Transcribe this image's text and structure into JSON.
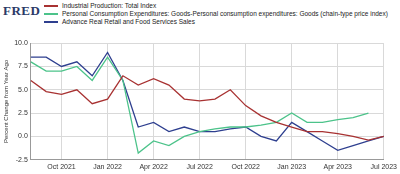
{
  "chart_data": {
    "type": "line",
    "logo": "FRED",
    "y_label": "Percent Change from Year Ago",
    "categories": [
      null,
      null,
      "Oct 2021",
      null,
      null,
      "Jan 2022",
      null,
      null,
      "Apr 2022",
      null,
      null,
      "Jul 2022",
      null,
      null,
      "Oct 2022",
      null,
      null,
      "Jan 2023",
      null,
      null,
      "Apr 2023",
      null,
      null,
      "Jul 2023"
    ],
    "series": [
      {
        "name": "Industrial Production: Total Index",
        "color": "#a83232",
        "values": [
          6.0,
          4.8,
          4.5,
          5.0,
          3.5,
          4.0,
          6.5,
          5.5,
          6.2,
          5.5,
          4.0,
          3.8,
          4.0,
          5.0,
          3.3,
          2.2,
          1.5,
          1.0,
          0.5,
          0.5,
          0.3,
          0.0,
          -0.4,
          0.0
        ]
      },
      {
        "name": "Personal Consumption Expenditures: Goods-Personal consumption expenditures: Goods (chain-type price index)",
        "color": "#4cc38a",
        "values": [
          8.0,
          7.0,
          7.0,
          7.5,
          6.0,
          8.5,
          6.0,
          -1.8,
          -0.5,
          -1.0,
          0.0,
          0.5,
          0.8,
          1.0,
          1.0,
          1.2,
          1.5,
          2.5,
          1.5,
          1.5,
          1.8,
          2.0,
          2.5,
          null
        ]
      },
      {
        "name": "Advance Real Retail and Food Services Sales",
        "color": "#2e3f8f",
        "values": [
          8.5,
          8.5,
          7.5,
          8.0,
          6.5,
          9.0,
          6.0,
          1.0,
          1.5,
          0.5,
          1.0,
          0.5,
          0.5,
          0.8,
          1.0,
          0.0,
          -0.5,
          1.5,
          0.5,
          -0.5,
          -1.5,
          -1.0,
          -0.5,
          0.0
        ]
      }
    ],
    "ylim": [
      -2.5,
      10.0
    ],
    "yticks": [
      -2.5,
      {
        "value": 0,
        "label": "0.0"
      },
      2.5,
      {
        "value": 5,
        "label": "5.0"
      },
      7.5,
      {
        "value": 10,
        "label": "10.0"
      }
    ],
    "grid": true,
    "legend": "top-left"
  }
}
